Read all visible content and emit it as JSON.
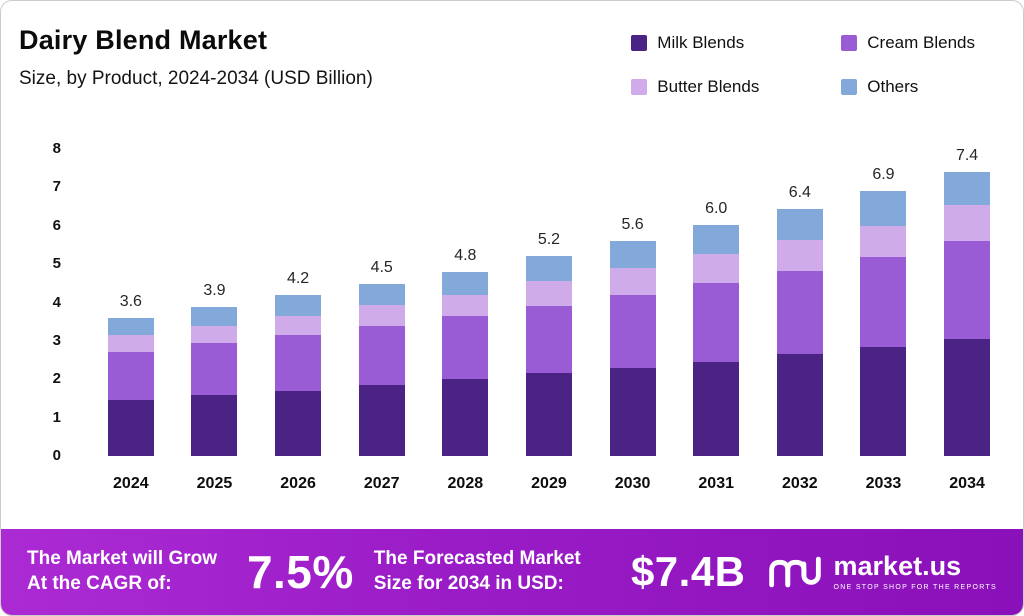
{
  "header": {
    "title": "Dairy Blend Market",
    "subtitle": "Size, by Product, 2024-2034 (USD Billion)"
  },
  "chart_data": {
    "type": "bar",
    "stacked": true,
    "title": "Dairy Blend Market Size, by Product, 2024-2034 (USD Billion)",
    "unit": "USD Billion",
    "categories": [
      "2024",
      "2025",
      "2026",
      "2027",
      "2028",
      "2029",
      "2030",
      "2031",
      "2032",
      "2033",
      "2034"
    ],
    "series": [
      {
        "name": "Milk Blends",
        "color": "#4a2385",
        "values": [
          1.45,
          1.6,
          1.7,
          1.85,
          2.0,
          2.15,
          2.3,
          2.45,
          2.65,
          2.85,
          3.05
        ]
      },
      {
        "name": "Cream Blends",
        "color": "#9a5cd4",
        "values": [
          1.25,
          1.35,
          1.45,
          1.55,
          1.65,
          1.75,
          1.9,
          2.05,
          2.15,
          2.35,
          2.55
        ]
      },
      {
        "name": "Butter Blends",
        "color": "#cfabe9",
        "values": [
          0.45,
          0.45,
          0.5,
          0.55,
          0.55,
          0.65,
          0.7,
          0.75,
          0.8,
          0.8,
          0.95
        ]
      },
      {
        "name": "Others",
        "color": "#82a9d9",
        "values": [
          0.45,
          0.5,
          0.55,
          0.55,
          0.6,
          0.65,
          0.7,
          0.75,
          0.8,
          0.9,
          0.85
        ]
      }
    ],
    "totals": [
      3.6,
      3.9,
      4.2,
      4.5,
      4.8,
      5.2,
      5.6,
      6.0,
      6.4,
      6.9,
      7.4
    ],
    "ylim": [
      0,
      8
    ],
    "yticks": [
      0,
      1,
      2,
      3,
      4,
      5,
      6,
      7,
      8
    ],
    "grid": false,
    "legend_position": "top-right"
  },
  "banner": {
    "cagr_label": "The Market will Grow At the CAGR of:",
    "cagr_value": "7.5%",
    "forecast_label": "The Forecasted Market Size for 2034 in USD:",
    "forecast_value": "$7.4B",
    "brand_name": "market.us",
    "brand_tagline": "ONE STOP SHOP FOR THE REPORTS"
  }
}
